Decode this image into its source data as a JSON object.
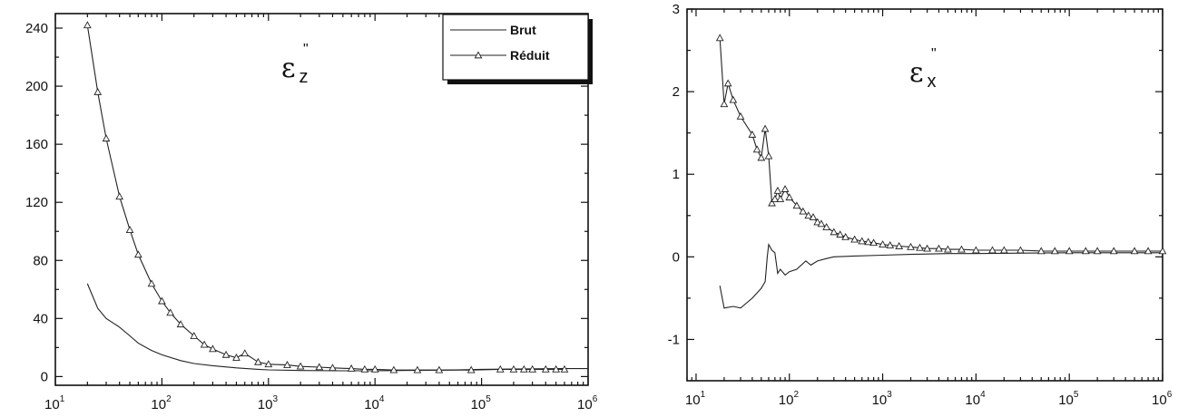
{
  "chart_data": [
    {
      "type": "line",
      "panel_label": {
        "symbol": "ε",
        "superscript": "\"",
        "subscript": "z"
      },
      "x_scale": "log",
      "xlim": [
        10,
        1000000
      ],
      "ylim": [
        -6,
        250
      ],
      "x_ticks": [
        {
          "base": "10",
          "exp": "1"
        },
        {
          "base": "10",
          "exp": "2"
        },
        {
          "base": "10",
          "exp": "3"
        },
        {
          "base": "10",
          "exp": "4"
        },
        {
          "base": "10",
          "exp": "5"
        },
        {
          "base": "10",
          "exp": "6"
        }
      ],
      "y_ticks": [
        0,
        40,
        80,
        120,
        160,
        200,
        240
      ],
      "legend": {
        "placement": "top-right",
        "entries": [
          "Brut",
          "Réduit"
        ]
      },
      "series": [
        {
          "name": "Brut",
          "marker": "none",
          "x": [
            20,
            25,
            30,
            40,
            50,
            60,
            80,
            100,
            150,
            200,
            300,
            500,
            800,
            1000,
            2000,
            5000,
            10000,
            50000,
            100000,
            600000,
            1000000
          ],
          "y": [
            64,
            47,
            40,
            34,
            28,
            23,
            18,
            15,
            11,
            9,
            7.5,
            6,
            5,
            4.6,
            4.2,
            4.0,
            4.0,
            4.5,
            5,
            5.5,
            5.5
          ]
        },
        {
          "name": "Réduit",
          "marker": "triangle",
          "x": [
            20,
            25,
            30,
            40,
            50,
            60,
            80,
            100,
            120,
            150,
            200,
            250,
            300,
            400,
            500,
            600,
            800,
            1000,
            1500,
            2000,
            3000,
            4000,
            6000,
            8000,
            10000,
            15000,
            25000,
            40000,
            80000,
            150000,
            200000,
            250000,
            300000,
            400000,
            500000,
            600000
          ],
          "y": [
            242,
            196,
            164,
            124,
            101,
            84,
            64,
            52,
            44,
            36,
            28,
            22,
            19,
            15,
            13,
            16,
            10,
            8.5,
            8,
            7,
            6.5,
            6,
            5.5,
            5,
            5,
            4.5,
            4.5,
            4.5,
            4.5,
            5,
            5,
            5,
            5,
            5,
            5,
            5
          ]
        }
      ]
    },
    {
      "type": "line",
      "panel_label": {
        "symbol": "ε",
        "superscript": "\"",
        "subscript": "x"
      },
      "x_scale": "log",
      "xlim": [
        8,
        1000000
      ],
      "ylim": [
        -1.5,
        3
      ],
      "x_ticks": [
        {
          "base": "10",
          "exp": "1"
        },
        {
          "base": "10",
          "exp": "2"
        },
        {
          "base": "10",
          "exp": "3"
        },
        {
          "base": "10",
          "exp": "4"
        },
        {
          "base": "10",
          "exp": "5"
        },
        {
          "base": "10",
          "exp": "6"
        }
      ],
      "y_ticks": [
        3,
        2,
        1,
        0,
        -1
      ],
      "series": [
        {
          "name": "Brut",
          "marker": "none",
          "x": [
            18,
            20,
            25,
            30,
            40,
            50,
            55,
            58,
            60,
            65,
            70,
            75,
            80,
            90,
            100,
            120,
            150,
            170,
            200,
            250,
            300,
            500,
            1000,
            2000,
            5000,
            10000,
            100000,
            1000000
          ],
          "y": [
            -0.35,
            -0.62,
            -0.6,
            -0.62,
            -0.5,
            -0.38,
            -0.3,
            0.0,
            0.15,
            0.08,
            0.05,
            -0.2,
            -0.15,
            -0.22,
            -0.18,
            -0.15,
            -0.05,
            -0.1,
            -0.05,
            -0.02,
            0.0,
            0.01,
            0.02,
            0.03,
            0.04,
            0.04,
            0.05,
            0.05
          ]
        },
        {
          "name": "Réduit",
          "marker": "triangle",
          "x": [
            18,
            20,
            22,
            25,
            30,
            40,
            45,
            50,
            55,
            60,
            65,
            70,
            75,
            80,
            90,
            100,
            120,
            140,
            160,
            180,
            200,
            220,
            250,
            300,
            350,
            400,
            500,
            600,
            700,
            800,
            1000,
            1200,
            1500,
            2000,
            2500,
            3000,
            4000,
            5000,
            7000,
            10000,
            15000,
            20000,
            30000,
            50000,
            70000,
            100000,
            150000,
            200000,
            300000,
            500000,
            700000,
            1000000
          ],
          "y": [
            2.65,
            1.85,
            2.1,
            1.9,
            1.7,
            1.48,
            1.3,
            1.2,
            1.55,
            1.22,
            0.65,
            0.7,
            0.8,
            0.7,
            0.82,
            0.72,
            0.62,
            0.55,
            0.5,
            0.48,
            0.42,
            0.4,
            0.36,
            0.3,
            0.27,
            0.24,
            0.21,
            0.19,
            0.18,
            0.17,
            0.15,
            0.14,
            0.13,
            0.12,
            0.11,
            0.1,
            0.1,
            0.09,
            0.09,
            0.08,
            0.08,
            0.08,
            0.08,
            0.07,
            0.07,
            0.07,
            0.07,
            0.07,
            0.07,
            0.07,
            0.07,
            0.07
          ]
        }
      ]
    }
  ]
}
